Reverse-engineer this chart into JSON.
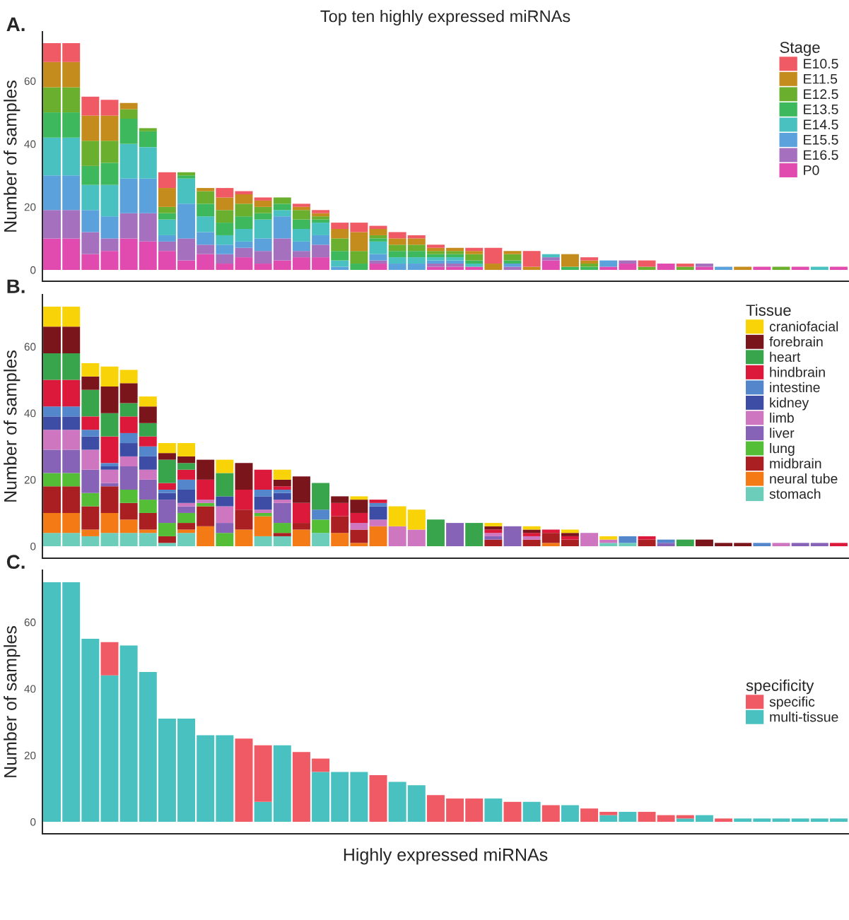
{
  "chart_data": [
    {
      "type": "bar",
      "stacked": true,
      "title": "Top ten highly expressed miRNAs",
      "ylabel": "Number of samples",
      "annotations": [
        "A."
      ],
      "legend": "top right",
      "legend_title": "Stage",
      "tick_labels": "y",
      "ylim": [
        -3.6,
        75.6
      ],
      "yticks": [
        0,
        20,
        40,
        60
      ],
      "categories": [
        null,
        null,
        null,
        null,
        null,
        null,
        null,
        null,
        null,
        null,
        null,
        null,
        null,
        null,
        null,
        null,
        null,
        null,
        null,
        null,
        null,
        null,
        null,
        null,
        null,
        null,
        null,
        null,
        null,
        null,
        null,
        null,
        null,
        null,
        null,
        null,
        null,
        null,
        null,
        null,
        null,
        null
      ],
      "series": [
        {
          "name": "P0",
          "color": "#e14aae",
          "values": [
            10,
            10,
            5,
            6,
            10,
            9,
            6,
            3,
            5,
            2,
            4,
            2,
            3,
            4,
            4,
            0,
            0,
            2,
            0,
            0,
            1,
            1,
            1,
            0,
            0,
            0,
            3,
            0,
            0,
            1,
            2,
            0,
            2,
            0,
            1,
            0,
            0,
            1,
            0,
            1,
            0,
            1
          ]
        },
        {
          "name": "E16.5",
          "color": "#a571be",
          "values": [
            9,
            9,
            7,
            4,
            8,
            9,
            3,
            7,
            3,
            3,
            3,
            4,
            7,
            2,
            4,
            0,
            0,
            1,
            0,
            0,
            1,
            1,
            0,
            0,
            1,
            0,
            1,
            0,
            0,
            0,
            1,
            0,
            0,
            0,
            1,
            0,
            0,
            0,
            0,
            0,
            0,
            0
          ]
        },
        {
          "name": "E15.5",
          "color": "#5ba1dc",
          "values": [
            11,
            11,
            7,
            7,
            11,
            11,
            2,
            11,
            4,
            3,
            2,
            4,
            7,
            3,
            3,
            1,
            0,
            2,
            2,
            2,
            1,
            1,
            0,
            0,
            1,
            0,
            0,
            0,
            0,
            2,
            0,
            0,
            0,
            0,
            0,
            1,
            0,
            0,
            0,
            0,
            0,
            0
          ]
        },
        {
          "name": "E14.5",
          "color": "#4ac1c1",
          "values": [
            12,
            12,
            8,
            10,
            11,
            10,
            5,
            8,
            5,
            3,
            4,
            6,
            2,
            4,
            4,
            2,
            0,
            4,
            2,
            2,
            1,
            1,
            1,
            0,
            0,
            0,
            1,
            0,
            0,
            0,
            0,
            0,
            0,
            0,
            0,
            0,
            0,
            0,
            0,
            0,
            1,
            0
          ]
        },
        {
          "name": "E13.5",
          "color": "#3db85c",
          "values": [
            8,
            8,
            6,
            7,
            8,
            5,
            2,
            1,
            4,
            4,
            4,
            2,
            2,
            3,
            1,
            3,
            2,
            1,
            2,
            2,
            1,
            1,
            1,
            0,
            1,
            0,
            0,
            1,
            1,
            0,
            0,
            0,
            0,
            0,
            0,
            0,
            0,
            0,
            0,
            0,
            0,
            0
          ]
        },
        {
          "name": "E12.5",
          "color": "#6baf2f",
          "values": [
            8,
            8,
            8,
            7,
            3,
            1,
            2,
            1,
            4,
            4,
            4,
            2,
            2,
            3,
            1,
            4,
            4,
            1,
            2,
            2,
            1,
            1,
            2,
            0,
            2,
            0,
            0,
            0,
            1,
            0,
            0,
            1,
            0,
            1,
            0,
            0,
            0,
            0,
            1,
            0,
            0,
            0
          ]
        },
        {
          "name": "E11.5",
          "color": "#c48c1c",
          "values": [
            8,
            8,
            8,
            8,
            2,
            0,
            6,
            0,
            1,
            4,
            3,
            2,
            0,
            1,
            1,
            3,
            6,
            2,
            2,
            2,
            1,
            1,
            1,
            2,
            1,
            1,
            0,
            4,
            1,
            0,
            0,
            0,
            0,
            0,
            0,
            0,
            1,
            0,
            0,
            0,
            0,
            0
          ]
        },
        {
          "name": "E10.5",
          "color": "#f05a64",
          "values": [
            6,
            6,
            6,
            5,
            0,
            0,
            5,
            0,
            0,
            3,
            1,
            1,
            0,
            1,
            1,
            2,
            3,
            1,
            2,
            1,
            1,
            0,
            1,
            5,
            0,
            5,
            0,
            0,
            1,
            0,
            0,
            2,
            0,
            1,
            0,
            0,
            0,
            0,
            0,
            0,
            0,
            0
          ]
        }
      ]
    },
    {
      "type": "bar",
      "stacked": true,
      "ylabel": "Number of samples",
      "annotations": [
        "B."
      ],
      "legend": "top right",
      "legend_title": "Tissue",
      "tick_labels": "y",
      "ylim": [
        -3.6,
        75.6
      ],
      "yticks": [
        0,
        20,
        40,
        60
      ],
      "categories": [
        null,
        null,
        null,
        null,
        null,
        null,
        null,
        null,
        null,
        null,
        null,
        null,
        null,
        null,
        null,
        null,
        null,
        null,
        null,
        null,
        null,
        null,
        null,
        null,
        null,
        null,
        null,
        null,
        null,
        null,
        null,
        null,
        null,
        null,
        null,
        null,
        null,
        null,
        null,
        null,
        null,
        null
      ],
      "series": [
        {
          "name": "stomach",
          "color": "#6dcdbb",
          "values": [
            4,
            4,
            3,
            4,
            4,
            4,
            1,
            4,
            0,
            0,
            0,
            3,
            3,
            0,
            4,
            0,
            0,
            0,
            0,
            0,
            0,
            0,
            0,
            0,
            0,
            0,
            0,
            0,
            0,
            1,
            1,
            0,
            0,
            0,
            0,
            0,
            0,
            0,
            0,
            0,
            0,
            0
          ]
        },
        {
          "name": "neural tube",
          "color": "#f47a16",
          "values": [
            6,
            6,
            2,
            6,
            4,
            1,
            0,
            1,
            6,
            0,
            5,
            6,
            0,
            5,
            0,
            4,
            1,
            6,
            0,
            0,
            0,
            0,
            0,
            0,
            0,
            0,
            1,
            0,
            0,
            0,
            0,
            0,
            0,
            0,
            0,
            0,
            0,
            0,
            0,
            0,
            0,
            0
          ]
        },
        {
          "name": "midbrain",
          "color": "#aa1f22",
          "values": [
            8,
            8,
            7,
            8,
            5,
            5,
            2,
            2,
            6,
            0,
            6,
            0,
            1,
            2,
            0,
            5,
            4,
            0,
            0,
            0,
            0,
            0,
            0,
            2,
            0,
            2,
            3,
            2,
            0,
            0,
            0,
            2,
            0,
            0,
            0,
            0,
            0,
            0,
            0,
            0,
            0,
            0
          ]
        },
        {
          "name": "lung",
          "color": "#54be37",
          "values": [
            4,
            4,
            4,
            0,
            4,
            4,
            4,
            3,
            1,
            4,
            0,
            1,
            3,
            0,
            4,
            0,
            0,
            0,
            0,
            0,
            0,
            0,
            0,
            0,
            0,
            0,
            0,
            0,
            0,
            0,
            0,
            0,
            0,
            0,
            0,
            0,
            0,
            0,
            0,
            0,
            0,
            0
          ]
        },
        {
          "name": "liver",
          "color": "#8763b8",
          "values": [
            7,
            7,
            7,
            1,
            7,
            6,
            7,
            2,
            0,
            3,
            0,
            0,
            6,
            0,
            0,
            0,
            0,
            0,
            0,
            0,
            0,
            7,
            0,
            1,
            6,
            0,
            0,
            0,
            0,
            0,
            0,
            0,
            1,
            0,
            0,
            0,
            0,
            0,
            0,
            1,
            1,
            0
          ]
        },
        {
          "name": "limb",
          "color": "#ce76c0",
          "values": [
            6,
            6,
            6,
            4,
            3,
            3,
            0,
            1,
            1,
            5,
            0,
            1,
            1,
            0,
            0,
            0,
            2,
            2,
            6,
            5,
            0,
            0,
            0,
            1,
            0,
            1,
            0,
            0,
            4,
            1,
            0,
            0,
            0,
            0,
            0,
            0,
            0,
            0,
            1,
            0,
            0,
            0
          ]
        },
        {
          "name": "kidney",
          "color": "#3d4ca4",
          "values": [
            4,
            4,
            4,
            1,
            4,
            4,
            2,
            4,
            0,
            3,
            0,
            4,
            2,
            0,
            0,
            0,
            0,
            4,
            0,
            0,
            0,
            0,
            0,
            0,
            0,
            0,
            0,
            0,
            0,
            0,
            0,
            0,
            0,
            0,
            0,
            0,
            0,
            0,
            0,
            0,
            0,
            0
          ]
        },
        {
          "name": "intestine",
          "color": "#5486cc",
          "values": [
            3,
            3,
            2,
            1,
            3,
            3,
            1,
            3,
            0,
            0,
            0,
            2,
            1,
            0,
            3,
            0,
            0,
            1,
            0,
            0,
            0,
            0,
            0,
            0,
            0,
            0,
            0,
            0,
            0,
            0,
            2,
            0,
            1,
            0,
            0,
            0,
            0,
            1,
            0,
            0,
            0,
            0
          ]
        },
        {
          "name": "hindbrain",
          "color": "#dc193b",
          "values": [
            8,
            8,
            4,
            8,
            5,
            3,
            2,
            3,
            6,
            0,
            6,
            6,
            1,
            6,
            0,
            4,
            3,
            1,
            0,
            0,
            0,
            0,
            0,
            1,
            0,
            1,
            1,
            1,
            0,
            0,
            0,
            1,
            0,
            0,
            0,
            0,
            0,
            0,
            0,
            0,
            0,
            1
          ]
        },
        {
          "name": "heart",
          "color": "#38a54d",
          "values": [
            8,
            8,
            8,
            7,
            4,
            4,
            7,
            2,
            0,
            7,
            0,
            0,
            0,
            0,
            8,
            0,
            0,
            0,
            0,
            0,
            8,
            0,
            7,
            0,
            0,
            0,
            0,
            0,
            0,
            0,
            0,
            0,
            0,
            2,
            0,
            0,
            0,
            0,
            0,
            0,
            0,
            0
          ]
        },
        {
          "name": "forebrain",
          "color": "#7b151c",
          "values": [
            8,
            8,
            4,
            8,
            6,
            5,
            2,
            2,
            6,
            0,
            8,
            0,
            2,
            8,
            0,
            2,
            4,
            0,
            0,
            0,
            0,
            0,
            0,
            1,
            0,
            1,
            0,
            1,
            0,
            0,
            0,
            0,
            0,
            0,
            2,
            1,
            1,
            0,
            0,
            0,
            0,
            0
          ]
        },
        {
          "name": "craniofacial",
          "color": "#f7d307",
          "values": [
            6,
            6,
            4,
            6,
            4,
            3,
            3,
            4,
            0,
            4,
            0,
            0,
            3,
            0,
            0,
            0,
            1,
            0,
            6,
            6,
            0,
            0,
            0,
            1,
            0,
            1,
            0,
            1,
            0,
            1,
            0,
            0,
            0,
            0,
            0,
            0,
            0,
            0,
            0,
            0,
            0,
            0
          ]
        }
      ]
    },
    {
      "type": "bar",
      "stacked": true,
      "ylabel": "Number of samples",
      "xlabel": "Highly expressed miRNAs",
      "annotations": [
        "C."
      ],
      "legend": "right",
      "legend_title": "specificity",
      "tick_labels": "y",
      "ylim": [
        -3.6,
        75.6
      ],
      "yticks": [
        0,
        20,
        40,
        60
      ],
      "categories": [
        null,
        null,
        null,
        null,
        null,
        null,
        null,
        null,
        null,
        null,
        null,
        null,
        null,
        null,
        null,
        null,
        null,
        null,
        null,
        null,
        null,
        null,
        null,
        null,
        null,
        null,
        null,
        null,
        null,
        null,
        null,
        null,
        null,
        null,
        null,
        null,
        null,
        null,
        null,
        null,
        null,
        null
      ],
      "series": [
        {
          "name": "multi-tissue",
          "color": "#4ac1c1",
          "values": [
            72,
            72,
            55,
            44,
            53,
            45,
            31,
            31,
            26,
            26,
            0,
            6,
            23,
            0,
            15,
            15,
            15,
            0,
            12,
            11,
            0,
            0,
            0,
            7,
            0,
            6,
            0,
            5,
            0,
            2,
            3,
            0,
            0,
            1,
            2,
            0,
            1,
            1,
            1,
            1,
            1,
            1
          ]
        },
        {
          "name": "specific",
          "color": "#f05a64",
          "values": [
            0,
            0,
            0,
            10,
            0,
            0,
            0,
            0,
            0,
            0,
            25,
            17,
            0,
            21,
            4,
            0,
            0,
            14,
            0,
            0,
            8,
            7,
            7,
            0,
            6,
            0,
            5,
            0,
            4,
            1,
            0,
            3,
            2,
            1,
            0,
            1,
            0,
            0,
            0,
            0,
            0,
            0
          ]
        }
      ]
    }
  ]
}
